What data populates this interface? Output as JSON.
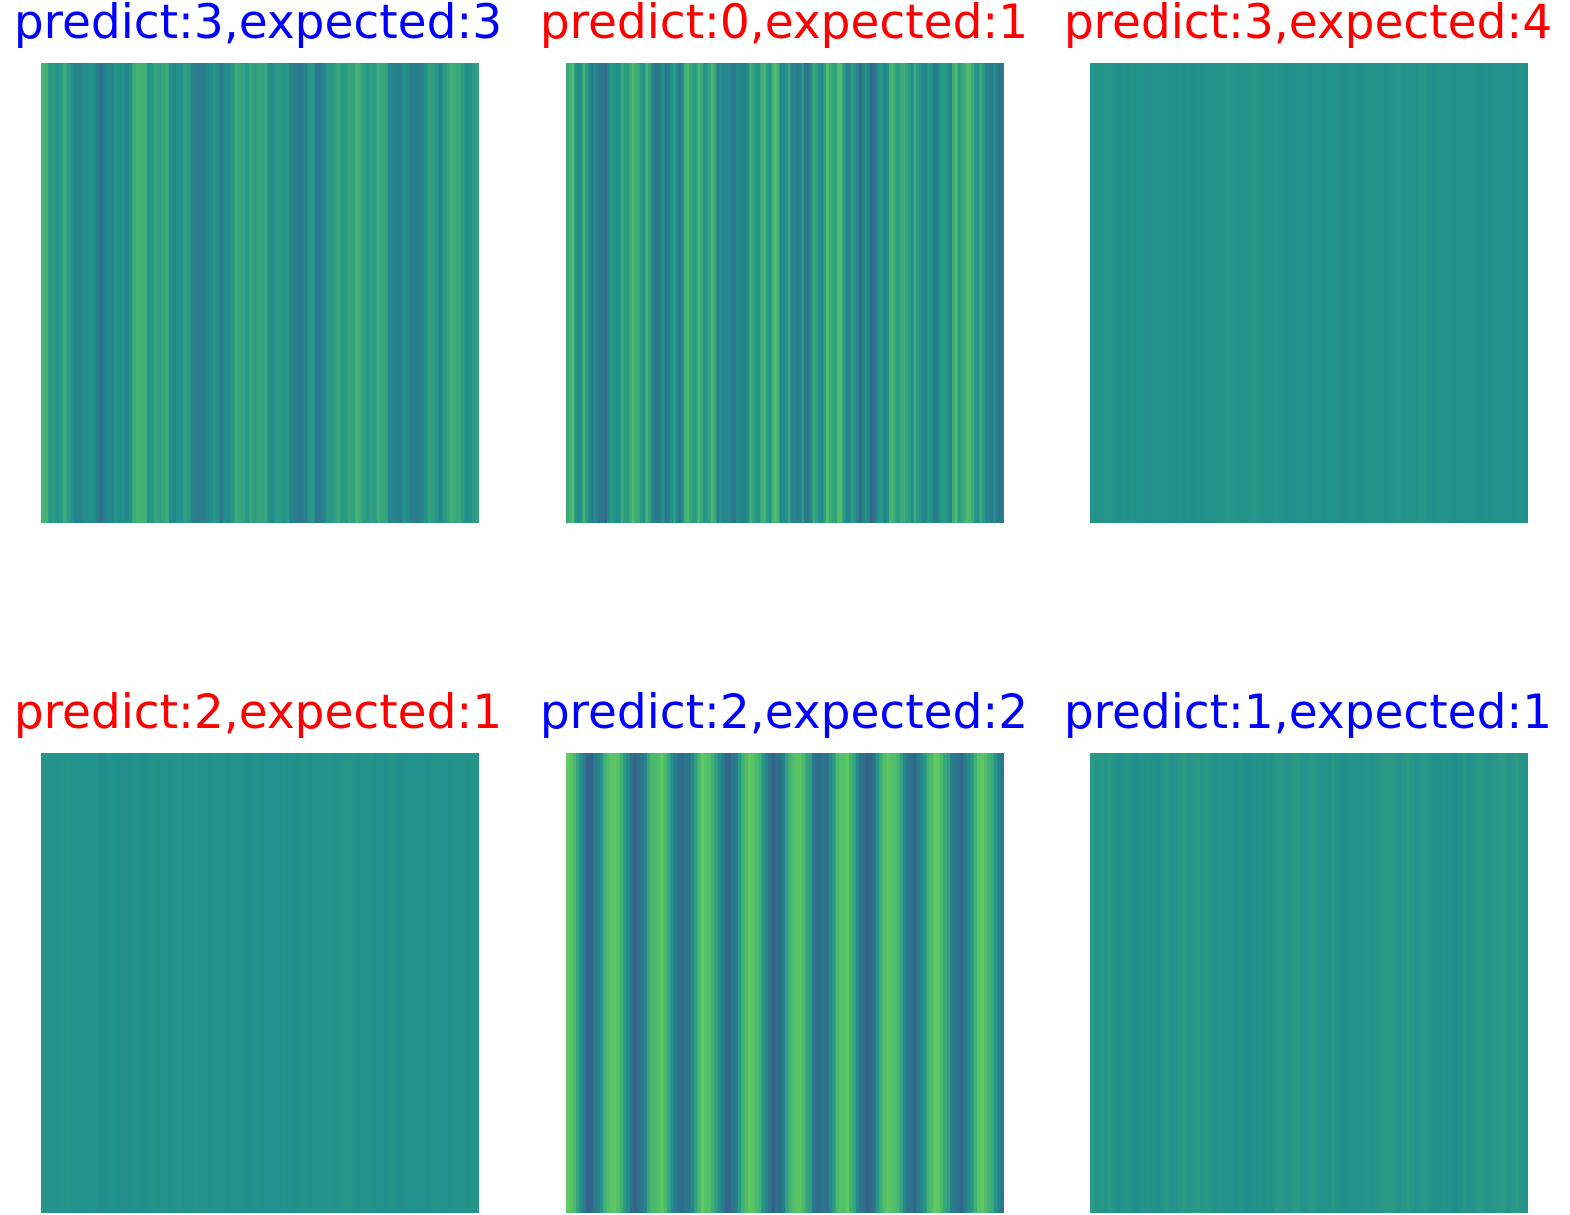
{
  "colors": {
    "correct": "#0000ff",
    "incorrect": "#ff0000",
    "background": "#ffffff",
    "colormap": "viridis"
  },
  "chart_data": [
    {
      "type": "heatmap",
      "title": "predict:3,expected:3",
      "predict": 3,
      "expected": 3,
      "correct": true,
      "axis": "off",
      "pattern": "vertical stripes, moderate variation"
    },
    {
      "type": "heatmap",
      "title": "predict:0,expected:1",
      "predict": 0,
      "expected": 1,
      "correct": false,
      "axis": "off",
      "pattern": "vertical stripes, dense high variation"
    },
    {
      "type": "heatmap",
      "title": "predict:3,expected:4",
      "predict": 3,
      "expected": 4,
      "correct": false,
      "axis": "off",
      "pattern": "nearly uniform"
    },
    {
      "type": "heatmap",
      "title": "predict:2,expected:1",
      "predict": 2,
      "expected": 1,
      "correct": false,
      "axis": "off",
      "pattern": "nearly uniform"
    },
    {
      "type": "heatmap",
      "title": "predict:2,expected:2",
      "predict": 2,
      "expected": 2,
      "correct": true,
      "axis": "off",
      "pattern": "vertical stripes, strong periodic variation"
    },
    {
      "type": "heatmap",
      "title": "predict:1,expected:1",
      "predict": 1,
      "expected": 1,
      "correct": true,
      "axis": "off",
      "pattern": "nearly uniform, faint stripes"
    }
  ]
}
